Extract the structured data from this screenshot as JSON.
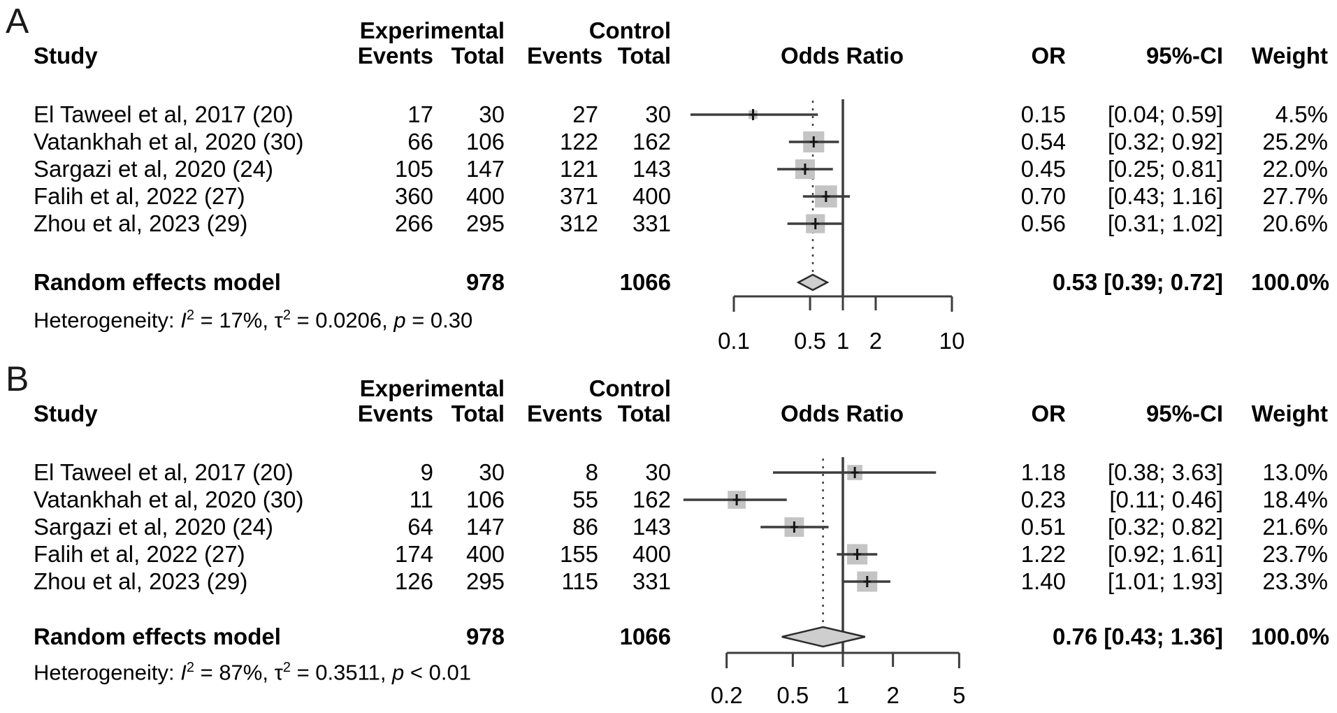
{
  "colors": {
    "background": "#ffffff",
    "text": "#000000",
    "line": "#3d3d3d",
    "marker": "#151515",
    "square_fill": "#c4c4c4",
    "diamond_fill": "#cecece",
    "diamond_stroke": "#2b2b2b"
  },
  "chart_data": [
    {
      "type": "forest",
      "panel_label": "A",
      "headers": {
        "study": "Study",
        "group1": "Experimental",
        "group2": "Control",
        "events1": "Events",
        "total1": "Total",
        "events2": "Events",
        "total2": "Total",
        "effect": "Odds Ratio",
        "or": "OR",
        "ci": "95%-CI",
        "weight": "Weight"
      },
      "studies": [
        {
          "name": "El Taweel et al, 2017 (20)",
          "exp_events": "17",
          "exp_total": "30",
          "ctrl_events": "27",
          "ctrl_total": "30",
          "or": 0.15,
          "ci_low": 0.04,
          "ci_high": 0.59,
          "or_text": "0.15",
          "ci_text": "[0.04; 0.59]",
          "weight": 4.5,
          "weight_text": "4.5%"
        },
        {
          "name": "Vatankhah et al, 2020 (30)",
          "exp_events": "66",
          "exp_total": "106",
          "ctrl_events": "122",
          "ctrl_total": "162",
          "or": 0.54,
          "ci_low": 0.32,
          "ci_high": 0.92,
          "or_text": "0.54",
          "ci_text": "[0.32; 0.92]",
          "weight": 25.2,
          "weight_text": "25.2%"
        },
        {
          "name": "Sargazi et al, 2020 (24)",
          "exp_events": "105",
          "exp_total": "147",
          "ctrl_events": "121",
          "ctrl_total": "143",
          "or": 0.45,
          "ci_low": 0.25,
          "ci_high": 0.81,
          "or_text": "0.45",
          "ci_text": "[0.25; 0.81]",
          "weight": 22.0,
          "weight_text": "22.0%"
        },
        {
          "name": "Falih et al, 2022 (27)",
          "exp_events": "360",
          "exp_total": "400",
          "ctrl_events": "371",
          "ctrl_total": "400",
          "or": 0.7,
          "ci_low": 0.43,
          "ci_high": 1.16,
          "or_text": "0.70",
          "ci_text": "[0.43; 1.16]",
          "weight": 27.7,
          "weight_text": "27.7%"
        },
        {
          "name": "Zhou et al, 2023 (29)",
          "exp_events": "266",
          "exp_total": "295",
          "ctrl_events": "312",
          "ctrl_total": "331",
          "or": 0.56,
          "ci_low": 0.31,
          "ci_high": 1.02,
          "or_text": "0.56",
          "ci_text": "[0.31; 1.02]",
          "weight": 20.6,
          "weight_text": "20.6%"
        }
      ],
      "pooled": {
        "label": "Random effects model",
        "exp_total": "978",
        "ctrl_total": "1066",
        "or": 0.53,
        "ci_low": 0.39,
        "ci_high": 0.72,
        "summary_text": "0.53 [0.39; 0.72]",
        "weight_text": "100.0%"
      },
      "het": {
        "prefix": "Heterogeneity: ",
        "i2": "I",
        "i2_sup": "2",
        "i2_val": " = 17%, ",
        "tau": "τ",
        "tau_sup": "2",
        "tau_val": " = 0.0206, ",
        "p": "p",
        "p_val": " = 0.30"
      },
      "axis": {
        "scale": "log",
        "ref_value": 1,
        "ticks": [
          0.1,
          0.5,
          1,
          2,
          10
        ],
        "tick_labels": [
          "0.1",
          "0.5",
          "1",
          "2",
          "10"
        ]
      }
    },
    {
      "type": "forest",
      "panel_label": "B",
      "headers": {
        "study": "Study",
        "group1": "Experimental",
        "group2": "Control",
        "events1": "Events",
        "total1": "Total",
        "events2": "Events",
        "total2": "Total",
        "effect": "Odds Ratio",
        "or": "OR",
        "ci": "95%-CI",
        "weight": "Weight"
      },
      "studies": [
        {
          "name": "El Taweel et al, 2017 (20)",
          "exp_events": "9",
          "exp_total": "30",
          "ctrl_events": "8",
          "ctrl_total": "30",
          "or": 1.18,
          "ci_low": 0.38,
          "ci_high": 3.63,
          "or_text": "1.18",
          "ci_text": "[0.38; 3.63]",
          "weight": 13.0,
          "weight_text": "13.0%"
        },
        {
          "name": "Vatankhah et al, 2020 (30)",
          "exp_events": "11",
          "exp_total": "106",
          "ctrl_events": "55",
          "ctrl_total": "162",
          "or": 0.23,
          "ci_low": 0.11,
          "ci_high": 0.46,
          "or_text": "0.23",
          "ci_text": "[0.11; 0.46]",
          "weight": 18.4,
          "weight_text": "18.4%"
        },
        {
          "name": "Sargazi et al, 2020 (24)",
          "exp_events": "64",
          "exp_total": "147",
          "ctrl_events": "86",
          "ctrl_total": "143",
          "or": 0.51,
          "ci_low": 0.32,
          "ci_high": 0.82,
          "or_text": "0.51",
          "ci_text": "[0.32; 0.82]",
          "weight": 21.6,
          "weight_text": "21.6%"
        },
        {
          "name": "Falih et al, 2022 (27)",
          "exp_events": "174",
          "exp_total": "400",
          "ctrl_events": "155",
          "ctrl_total": "400",
          "or": 1.22,
          "ci_low": 0.92,
          "ci_high": 1.61,
          "or_text": "1.22",
          "ci_text": "[0.92; 1.61]",
          "weight": 23.7,
          "weight_text": "23.7%"
        },
        {
          "name": "Zhou et al, 2023 (29)",
          "exp_events": "126",
          "exp_total": "295",
          "ctrl_events": "115",
          "ctrl_total": "331",
          "or": 1.4,
          "ci_low": 1.01,
          "ci_high": 1.93,
          "or_text": "1.40",
          "ci_text": "[1.01; 1.93]",
          "weight": 23.3,
          "weight_text": "23.3%"
        }
      ],
      "pooled": {
        "label": "Random effects model",
        "exp_total": "978",
        "ctrl_total": "1066",
        "or": 0.76,
        "ci_low": 0.43,
        "ci_high": 1.36,
        "summary_text": "0.76 [0.43; 1.36]",
        "weight_text": "100.0%"
      },
      "het": {
        "prefix": "Heterogeneity: ",
        "i2": "I",
        "i2_sup": "2",
        "i2_val": " = 87%, ",
        "tau": "τ",
        "tau_sup": "2",
        "tau_val": " = 0.3511, ",
        "p": "p",
        "p_val": " < 0.01"
      },
      "axis": {
        "scale": "log",
        "ref_value": 1,
        "ticks": [
          0.2,
          0.5,
          1,
          2,
          5
        ],
        "tick_labels": [
          "0.2",
          "0.5",
          "1",
          "2",
          "5"
        ]
      }
    }
  ]
}
